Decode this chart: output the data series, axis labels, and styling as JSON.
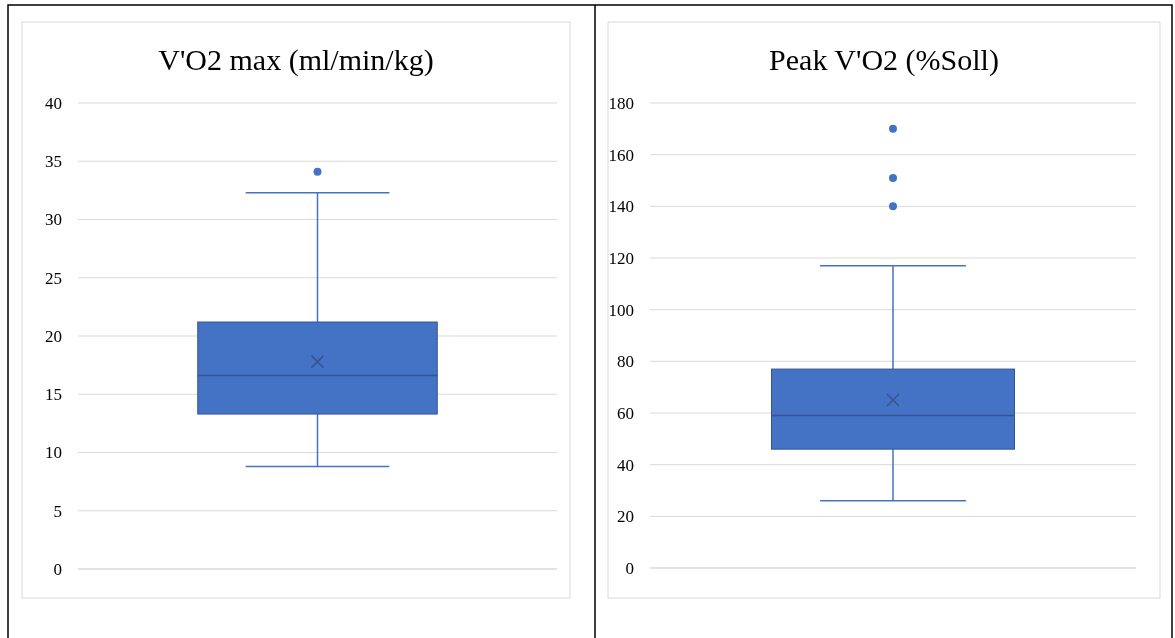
{
  "chart_data": [
    {
      "type": "box",
      "title": "V'O2 max (ml/min/kg)",
      "categories": [
        null
      ],
      "ylim": [
        0,
        40
      ],
      "yticks": [
        0,
        5,
        10,
        15,
        20,
        25,
        30,
        35,
        40
      ],
      "grid": "y",
      "series": [
        {
          "color": "#4472c4",
          "boxes": [
            {
              "low": 8.8,
              "q1": 13.3,
              "median": 16.6,
              "q3": 21.2,
              "high": 32.3,
              "mean": 17.8,
              "outliers": [
                34.1
              ]
            }
          ]
        }
      ]
    },
    {
      "type": "box",
      "title": "Peak V'O2 (%Soll)",
      "categories": [
        null
      ],
      "ylim": [
        0,
        180
      ],
      "yticks": [
        0,
        20,
        40,
        60,
        80,
        100,
        120,
        140,
        160,
        180
      ],
      "grid": "y",
      "series": [
        {
          "color": "#4472c4",
          "boxes": [
            {
              "low": 26,
              "q1": 46,
              "median": 59,
              "q3": 77,
              "high": 117,
              "mean": 65,
              "outliers": [
                140,
                151,
                170
              ]
            }
          ]
        }
      ]
    }
  ]
}
